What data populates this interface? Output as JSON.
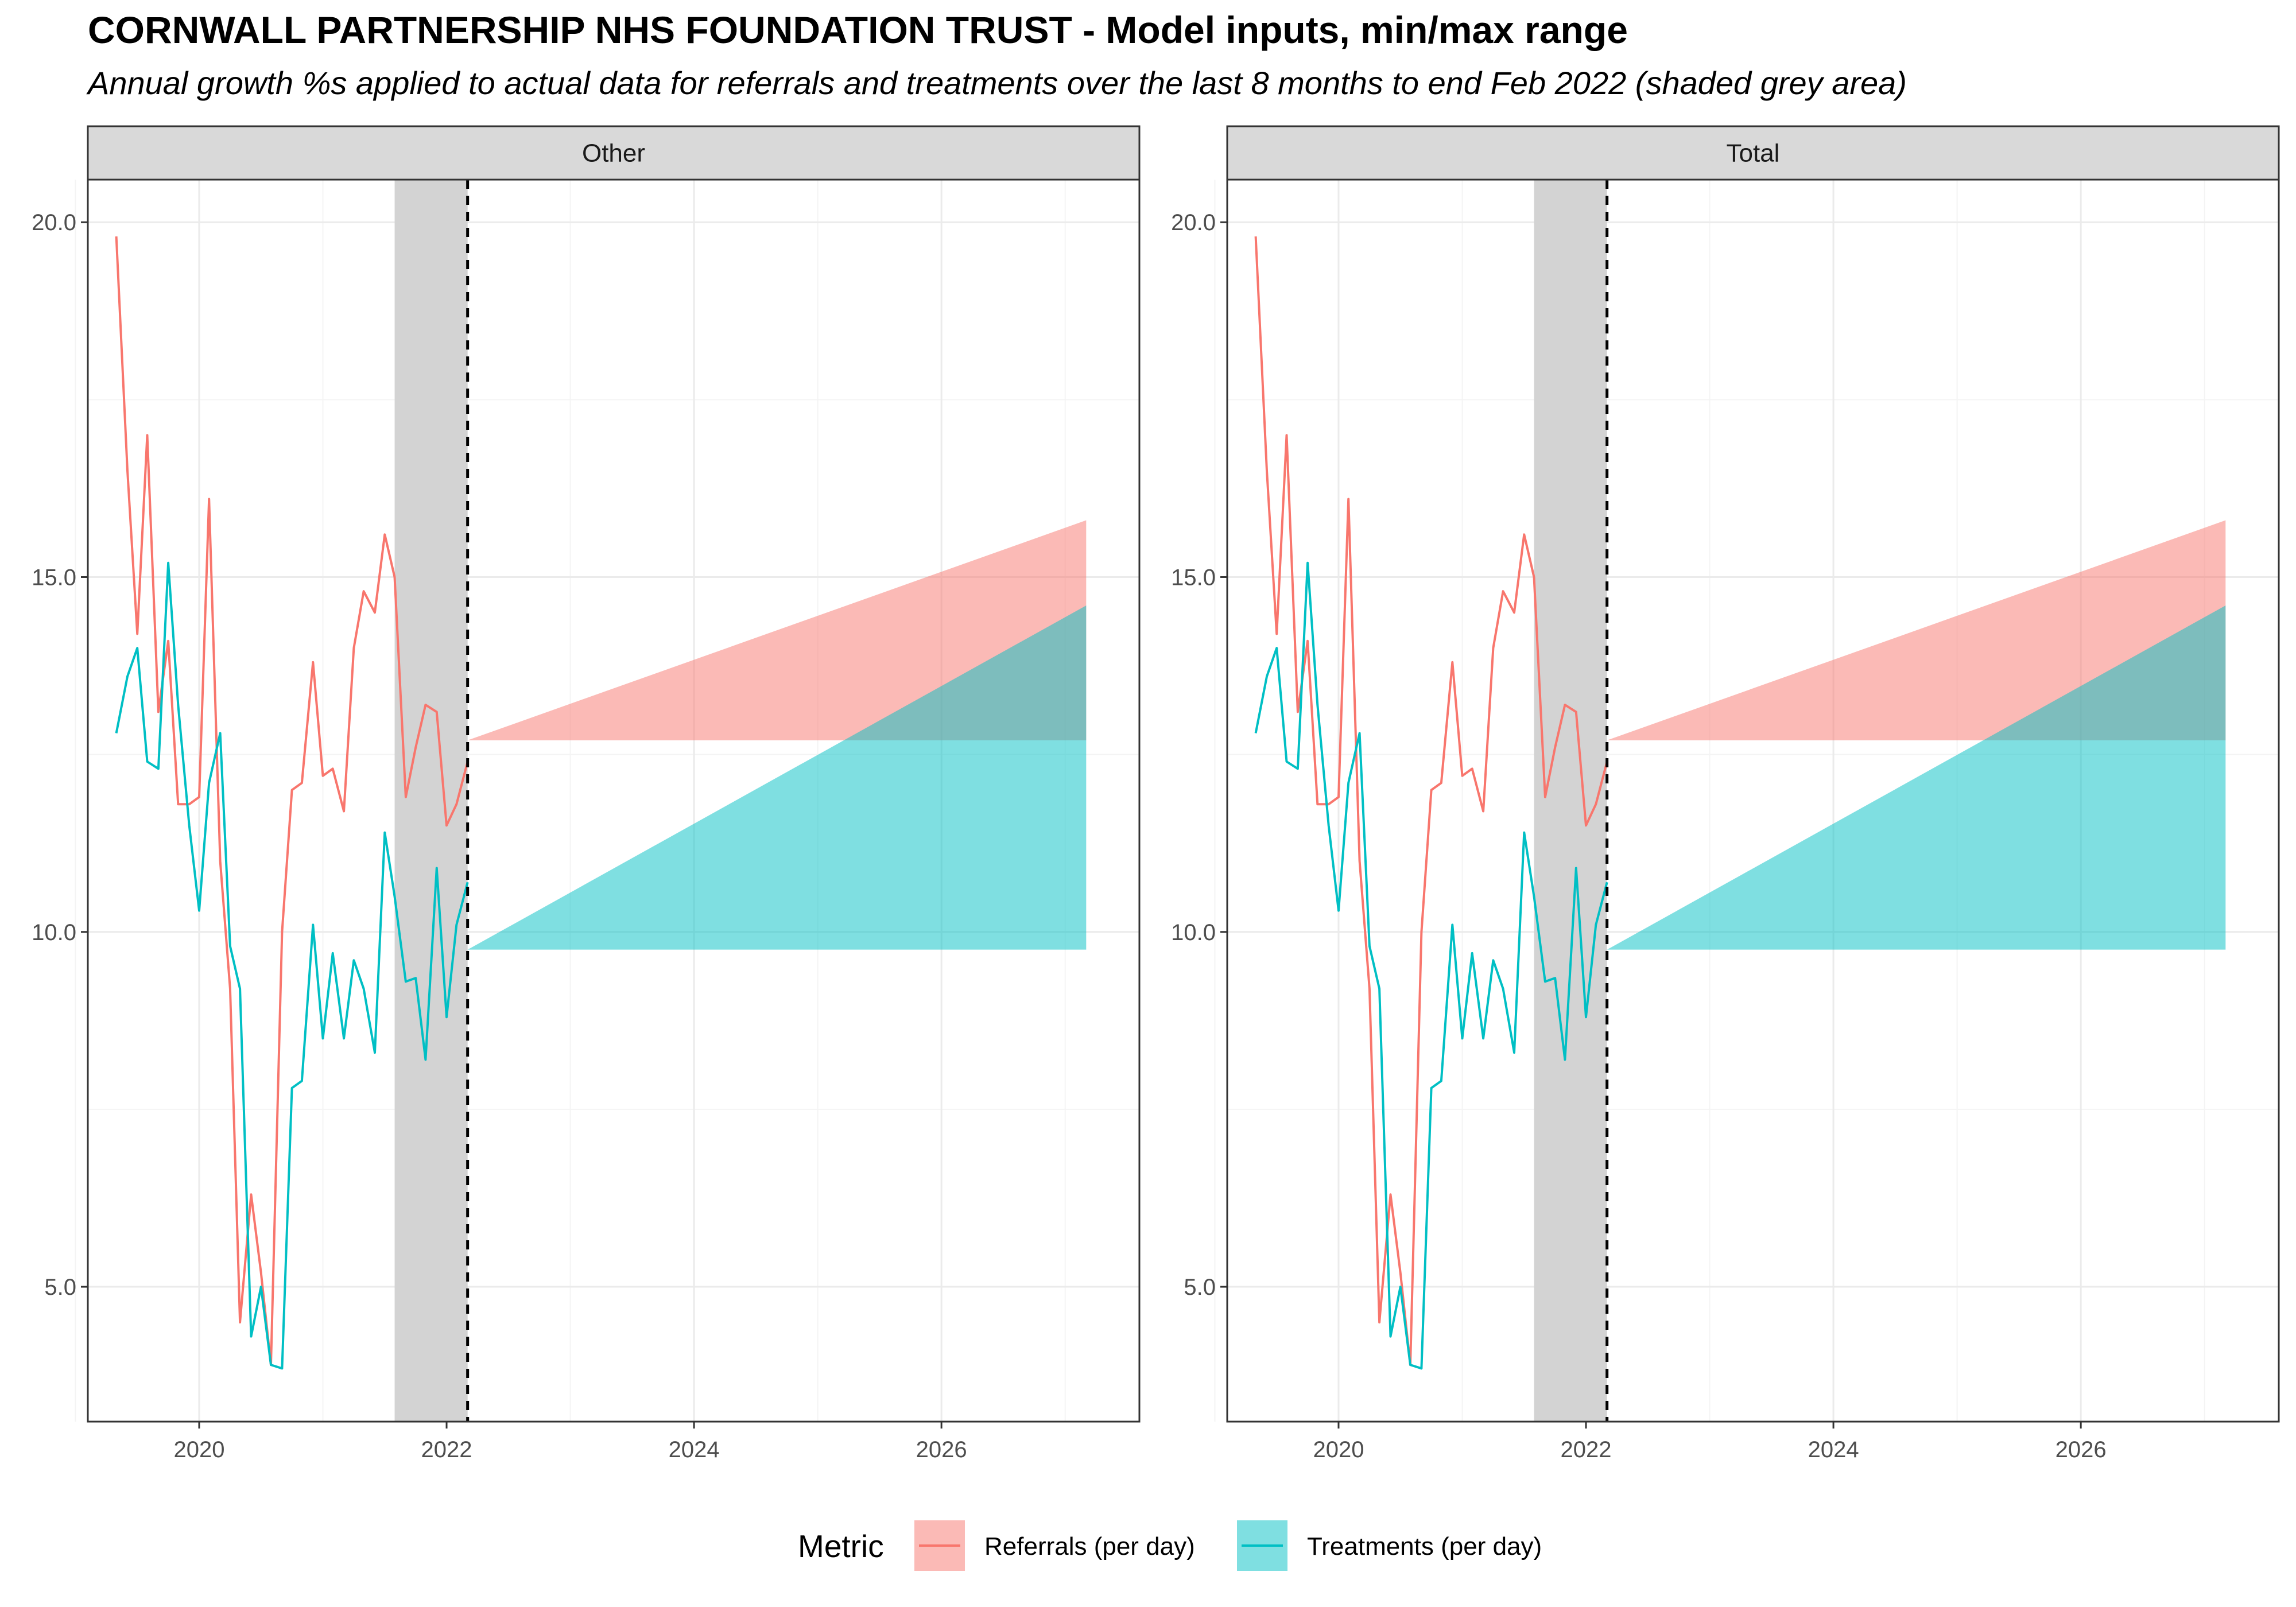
{
  "title": "CORNWALL PARTNERSHIP NHS FOUNDATION TRUST - Model inputs, min/max range",
  "subtitle": "Annual growth %s applied to actual data for referrals and treatments over the last 8 months to end Feb 2022 (shaded grey area)",
  "colors": {
    "referrals": "#F8766D",
    "treatments": "#00BFC4",
    "shade": "#d3d3d3",
    "strip_fill": "#d9d9d9",
    "grid_major": "#ebebeb",
    "grid_minor": "#f4f4f4"
  },
  "legend": {
    "title": "Metric",
    "position": "bottom",
    "entries": [
      "Referrals (per day)",
      "Treatments (per day)"
    ]
  },
  "chart_data": {
    "type": "line",
    "facets": [
      "Other",
      "Total"
    ],
    "x_axis": {
      "range": [
        2019.1,
        2027.6
      ],
      "ticks": [
        "2020",
        "2022",
        "2024",
        "2026"
      ],
      "tick_values": [
        2020,
        2022,
        2024,
        2026
      ]
    },
    "y_axis": {
      "range": [
        3.1,
        20.6
      ],
      "ticks": [
        "5.0",
        "10.0",
        "15.0",
        "20.0"
      ],
      "tick_values": [
        5,
        10,
        15,
        20
      ]
    },
    "grid": true,
    "shaded_period": {
      "start": 2021.58,
      "end": 2022.17,
      "label": "last 8 months to end Feb 2022"
    },
    "forecast_start": 2022.17,
    "forecast_end": 2027.17,
    "series": [
      {
        "name": "Referrals (per day)",
        "x": [
          2019.33,
          2019.42,
          2019.5,
          2019.58,
          2019.67,
          2019.75,
          2019.83,
          2019.92,
          2020.0,
          2020.08,
          2020.17,
          2020.25,
          2020.33,
          2020.42,
          2020.5,
          2020.58,
          2020.67,
          2020.75,
          2020.83,
          2020.92,
          2021.0,
          2021.08,
          2021.17,
          2021.25,
          2021.33,
          2021.42,
          2021.5,
          2021.58,
          2021.67,
          2021.75,
          2021.83,
          2021.92,
          2022.0,
          2022.08,
          2022.17
        ],
        "y": [
          19.8,
          16.5,
          14.2,
          17.0,
          13.1,
          14.1,
          11.8,
          11.8,
          11.9,
          16.1,
          11.0,
          9.2,
          4.5,
          6.3,
          5.2,
          3.9,
          10.0,
          12.0,
          12.1,
          13.8,
          12.2,
          12.3,
          11.7,
          14.0,
          14.8,
          14.5,
          15.6,
          15.0,
          11.9,
          12.6,
          13.2,
          13.1,
          11.5,
          11.8,
          12.4
        ],
        "range": {
          "min_start": 12.7,
          "max_end": 15.8,
          "min_end": 12.7
        }
      },
      {
        "name": "Treatments (per day)",
        "x": [
          2019.33,
          2019.42,
          2019.5,
          2019.58,
          2019.67,
          2019.75,
          2019.83,
          2019.92,
          2020.0,
          2020.08,
          2020.17,
          2020.25,
          2020.33,
          2020.42,
          2020.5,
          2020.58,
          2020.67,
          2020.75,
          2020.83,
          2020.92,
          2021.0,
          2021.08,
          2021.17,
          2021.25,
          2021.33,
          2021.42,
          2021.5,
          2021.58,
          2021.67,
          2021.75,
          2021.83,
          2021.92,
          2022.0,
          2022.08,
          2022.17
        ],
        "y": [
          12.8,
          13.6,
          14.0,
          12.4,
          12.3,
          15.2,
          13.2,
          11.5,
          10.3,
          12.1,
          12.8,
          9.8,
          9.2,
          4.3,
          5.0,
          3.9,
          3.85,
          7.8,
          7.9,
          10.1,
          8.5,
          9.7,
          8.5,
          9.6,
          9.2,
          8.3,
          11.4,
          10.5,
          9.3,
          9.35,
          8.2,
          10.9,
          8.8,
          10.1,
          10.7
        ],
        "range": {
          "min_start": 9.75,
          "max_end": 14.6,
          "min_end": 9.75
        }
      }
    ]
  }
}
